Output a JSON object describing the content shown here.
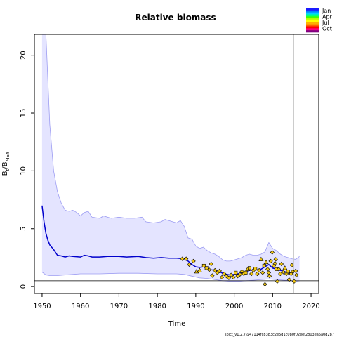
{
  "chart_data": {
    "type": "line",
    "title": "Relative biomass",
    "xlabel": "Time",
    "ylabel": {
      "main": "B",
      "sub1": "t",
      "sep": "/B",
      "sub2": "MSY"
    },
    "xlim": [
      1948,
      2022
    ],
    "ylim": [
      -0.6,
      21.8
    ],
    "x_ticks": [
      1950,
      1960,
      1970,
      1980,
      1990,
      2000,
      2010,
      2020
    ],
    "y_ticks": [
      0,
      5,
      10,
      15,
      20
    ],
    "reference_line_y": 0.5,
    "vertical_line_x": 2015.5,
    "colors": {
      "median": "#0000cc",
      "band_fill": "#e4e4ff",
      "band_edge": "#9c9cf2",
      "ref_line": "#000000",
      "vline": "#c8c8c8",
      "points": "#f2c814"
    },
    "median": [
      [
        1950,
        7.0
      ],
      [
        1950.5,
        5.6
      ],
      [
        1951,
        4.6
      ],
      [
        1951.5,
        4.0
      ],
      [
        1952,
        3.6
      ],
      [
        1953,
        3.2
      ],
      [
        1954,
        2.7
      ],
      [
        1955,
        2.65
      ],
      [
        1956,
        2.55
      ],
      [
        1957,
        2.65
      ],
      [
        1958,
        2.6
      ],
      [
        1960,
        2.55
      ],
      [
        1961,
        2.7
      ],
      [
        1962,
        2.65
      ],
      [
        1963,
        2.55
      ],
      [
        1965,
        2.55
      ],
      [
        1967,
        2.6
      ],
      [
        1970,
        2.6
      ],
      [
        1972,
        2.55
      ],
      [
        1975,
        2.6
      ],
      [
        1977,
        2.5
      ],
      [
        1979,
        2.45
      ],
      [
        1981,
        2.5
      ],
      [
        1983,
        2.45
      ],
      [
        1985,
        2.45
      ],
      [
        1987,
        2.4
      ],
      [
        1988,
        2.2
      ],
      [
        1989,
        1.9
      ],
      [
        1990,
        1.7
      ],
      [
        1991,
        1.65
      ],
      [
        1992,
        1.7
      ],
      [
        1993,
        1.55
      ],
      [
        1994,
        1.45
      ],
      [
        1995,
        1.4
      ],
      [
        1996,
        1.3
      ],
      [
        1997,
        1.15
      ],
      [
        1998,
        1.05
      ],
      [
        1999,
        1.0
      ],
      [
        2000,
        1.05
      ],
      [
        2001,
        1.1
      ],
      [
        2002,
        1.2
      ],
      [
        2003,
        1.3
      ],
      [
        2004,
        1.4
      ],
      [
        2005,
        1.45
      ],
      [
        2006,
        1.45
      ],
      [
        2007,
        1.5
      ],
      [
        2008,
        1.7
      ],
      [
        2009,
        1.9
      ],
      [
        2010,
        1.6
      ],
      [
        2011,
        1.5
      ],
      [
        2012,
        1.4
      ],
      [
        2013,
        1.3
      ],
      [
        2014,
        1.2
      ],
      [
        2015,
        1.15
      ]
    ],
    "band_upper": [
      [
        1950,
        21.8
      ],
      [
        1951,
        21.8
      ],
      [
        1952,
        14.0
      ],
      [
        1953,
        10.0
      ],
      [
        1954,
        8.2
      ],
      [
        1955,
        7.2
      ],
      [
        1956,
        6.6
      ],
      [
        1957,
        6.5
      ],
      [
        1958,
        6.6
      ],
      [
        1959,
        6.4
      ],
      [
        1960,
        6.1
      ],
      [
        1961,
        6.4
      ],
      [
        1962,
        6.5
      ],
      [
        1963,
        6.0
      ],
      [
        1965,
        5.9
      ],
      [
        1966,
        6.1
      ],
      [
        1968,
        5.9
      ],
      [
        1970,
        6.0
      ],
      [
        1972,
        5.9
      ],
      [
        1974,
        5.9
      ],
      [
        1976,
        6.0
      ],
      [
        1977,
        5.6
      ],
      [
        1979,
        5.5
      ],
      [
        1981,
        5.6
      ],
      [
        1982,
        5.8
      ],
      [
        1984,
        5.6
      ],
      [
        1985,
        5.5
      ],
      [
        1986,
        5.7
      ],
      [
        1987,
        5.2
      ],
      [
        1988,
        4.2
      ],
      [
        1989,
        4.1
      ],
      [
        1990,
        3.5
      ],
      [
        1991,
        3.3
      ],
      [
        1992,
        3.4
      ],
      [
        1993,
        3.1
      ],
      [
        1994,
        2.9
      ],
      [
        1995,
        2.8
      ],
      [
        1996,
        2.6
      ],
      [
        1997,
        2.3
      ],
      [
        1998,
        2.2
      ],
      [
        1999,
        2.2
      ],
      [
        2000,
        2.3
      ],
      [
        2001,
        2.4
      ],
      [
        2002,
        2.5
      ],
      [
        2003,
        2.7
      ],
      [
        2004,
        2.8
      ],
      [
        2005,
        2.7
      ],
      [
        2006,
        2.7
      ],
      [
        2007,
        2.8
      ],
      [
        2008,
        3.0
      ],
      [
        2009,
        3.8
      ],
      [
        2010,
        3.3
      ],
      [
        2011,
        3.1
      ],
      [
        2012,
        2.8
      ],
      [
        2013,
        2.6
      ],
      [
        2014,
        2.5
      ],
      [
        2015,
        2.4
      ],
      [
        2016,
        2.35
      ],
      [
        2017,
        2.6
      ]
    ],
    "band_lower": [
      [
        1950,
        1.25
      ],
      [
        1951,
        1.0
      ],
      [
        1952,
        0.95
      ],
      [
        1954,
        0.95
      ],
      [
        1956,
        1.0
      ],
      [
        1958,
        1.05
      ],
      [
        1960,
        1.1
      ],
      [
        1965,
        1.1
      ],
      [
        1970,
        1.15
      ],
      [
        1975,
        1.15
      ],
      [
        1980,
        1.1
      ],
      [
        1985,
        1.1
      ],
      [
        1987,
        1.05
      ],
      [
        1989,
        0.9
      ],
      [
        1991,
        0.75
      ],
      [
        1993,
        0.7
      ],
      [
        1995,
        0.6
      ],
      [
        1997,
        0.5
      ],
      [
        1999,
        0.45
      ],
      [
        2001,
        0.45
      ],
      [
        2003,
        0.5
      ],
      [
        2005,
        0.55
      ],
      [
        2007,
        0.6
      ],
      [
        2009,
        0.65
      ],
      [
        2011,
        0.6
      ],
      [
        2013,
        0.55
      ],
      [
        2015,
        0.5
      ],
      [
        2016,
        0.45
      ],
      [
        2017,
        0.4
      ]
    ],
    "observations": [
      {
        "x": 1986.5,
        "y": 2.4,
        "m": "d"
      },
      {
        "x": 1987.5,
        "y": 2.4,
        "m": "d"
      },
      {
        "x": 1988.3,
        "y": 1.9,
        "m": "d"
      },
      {
        "x": 1989.4,
        "y": 2.2,
        "m": "d"
      },
      {
        "x": 1990.2,
        "y": 1.3,
        "m": "t"
      },
      {
        "x": 1991.0,
        "y": 1.4,
        "m": "t"
      },
      {
        "x": 1992.1,
        "y": 1.8,
        "m": "s"
      },
      {
        "x": 1992.8,
        "y": 1.6,
        "m": "s"
      },
      {
        "x": 1993.5,
        "y": 1.45,
        "m": "d"
      },
      {
        "x": 1994.0,
        "y": 1.95,
        "m": "d"
      },
      {
        "x": 1994.3,
        "y": 0.95,
        "m": "d"
      },
      {
        "x": 1995.0,
        "y": 1.4,
        "m": "d"
      },
      {
        "x": 1995.6,
        "y": 1.2,
        "m": "d"
      },
      {
        "x": 1996.2,
        "y": 1.35,
        "m": "d"
      },
      {
        "x": 1996.8,
        "y": 0.8,
        "m": "d"
      },
      {
        "x": 1997.4,
        "y": 1.1,
        "m": "d"
      },
      {
        "x": 1998.0,
        "y": 0.9,
        "m": "d"
      },
      {
        "x": 1998.6,
        "y": 0.75,
        "m": "d"
      },
      {
        "x": 1999.2,
        "y": 1.0,
        "m": "d"
      },
      {
        "x": 1999.8,
        "y": 0.8,
        "m": "d"
      },
      {
        "x": 2000.4,
        "y": 1.2,
        "m": "s"
      },
      {
        "x": 2000.9,
        "y": 0.9,
        "m": "d"
      },
      {
        "x": 2001.5,
        "y": 1.05,
        "m": "d"
      },
      {
        "x": 2002.0,
        "y": 1.3,
        "m": "d"
      },
      {
        "x": 2002.5,
        "y": 1.1,
        "m": "d"
      },
      {
        "x": 2003.0,
        "y": 1.2,
        "m": "s"
      },
      {
        "x": 2003.5,
        "y": 1.5,
        "m": "t"
      },
      {
        "x": 2004.0,
        "y": 1.6,
        "m": "s"
      },
      {
        "x": 2004.5,
        "y": 1.1,
        "m": "d"
      },
      {
        "x": 2005.0,
        "y": 1.4,
        "m": "d"
      },
      {
        "x": 2005.5,
        "y": 1.55,
        "m": "s"
      },
      {
        "x": 2006.0,
        "y": 1.1,
        "m": "d"
      },
      {
        "x": 2006.5,
        "y": 1.4,
        "m": "d"
      },
      {
        "x": 2007.0,
        "y": 2.35,
        "m": "t"
      },
      {
        "x": 2007.4,
        "y": 1.2,
        "m": "d"
      },
      {
        "x": 2007.8,
        "y": 1.8,
        "m": "s"
      },
      {
        "x": 2008.0,
        "y": 0.2,
        "m": "d"
      },
      {
        "x": 2008.3,
        "y": 2.1,
        "m": "t"
      },
      {
        "x": 2008.7,
        "y": 1.5,
        "m": "d"
      },
      {
        "x": 2009.0,
        "y": 1.2,
        "m": "d"
      },
      {
        "x": 2009.2,
        "y": 0.9,
        "m": "d"
      },
      {
        "x": 2009.5,
        "y": 2.2,
        "m": "d"
      },
      {
        "x": 2009.9,
        "y": 2.95,
        "m": "d"
      },
      {
        "x": 2010.3,
        "y": 1.8,
        "m": "d"
      },
      {
        "x": 2010.6,
        "y": 2.0,
        "m": "d"
      },
      {
        "x": 2010.8,
        "y": 2.35,
        "m": "d"
      },
      {
        "x": 2011.0,
        "y": 1.5,
        "m": "s"
      },
      {
        "x": 2011.2,
        "y": 0.45,
        "m": "d"
      },
      {
        "x": 2011.6,
        "y": 1.5,
        "m": "d"
      },
      {
        "x": 2012.0,
        "y": 1.1,
        "m": "d"
      },
      {
        "x": 2012.3,
        "y": 1.95,
        "m": "d"
      },
      {
        "x": 2012.8,
        "y": 1.25,
        "m": "d"
      },
      {
        "x": 2013.2,
        "y": 1.6,
        "m": "t"
      },
      {
        "x": 2013.6,
        "y": 1.1,
        "m": "d"
      },
      {
        "x": 2014.0,
        "y": 1.3,
        "m": "s"
      },
      {
        "x": 2014.3,
        "y": 0.6,
        "m": "d"
      },
      {
        "x": 2014.8,
        "y": 1.1,
        "m": "d"
      },
      {
        "x": 2015.0,
        "y": 1.85,
        "m": "d"
      },
      {
        "x": 2015.3,
        "y": 1.3,
        "m": "d"
      },
      {
        "x": 2015.6,
        "y": 0.45,
        "m": "d"
      },
      {
        "x": 2016.0,
        "y": 1.35,
        "m": "d"
      },
      {
        "x": 2016.2,
        "y": 1.0,
        "m": "d"
      }
    ],
    "legend": {
      "labels": [
        "Jan",
        "Apr",
        "Jul",
        "Oct"
      ],
      "colors": [
        "#1a1aff",
        "#0080ff",
        "#00d0ff",
        "#00ff80",
        "#40ff00",
        "#c0ff00",
        "#ffff00",
        "#ffb000",
        "#ff6000",
        "#ff0000",
        "#ff0080",
        "#800080"
      ]
    }
  },
  "footer": "spict_v1.2.7@47114fc8383c2e5d1c080f02eef2803ea5a0d287"
}
